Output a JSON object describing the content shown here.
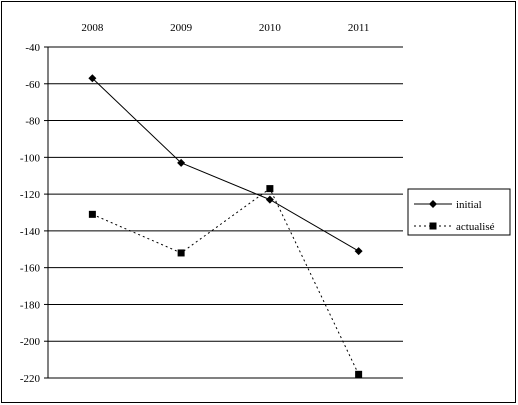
{
  "chart_data": {
    "type": "line",
    "categories": [
      "2008",
      "2009",
      "2010",
      "2011"
    ],
    "ylim": [
      -220,
      -40
    ],
    "yticks": [
      -40,
      -60,
      -80,
      -100,
      -120,
      -140,
      -160,
      -180,
      -200,
      -220
    ],
    "grid": true,
    "x_axis_position": "top",
    "legend_position": "right",
    "series": [
      {
        "name": "initial",
        "values": [
          -57,
          -103,
          -123,
          -151
        ],
        "marker": "diamond",
        "line": "solid",
        "color": "#000000"
      },
      {
        "name": "actualisé",
        "values": [
          -131,
          -152,
          -117,
          -218
        ],
        "marker": "square",
        "line": "dotted",
        "color": "#000000"
      }
    ]
  }
}
